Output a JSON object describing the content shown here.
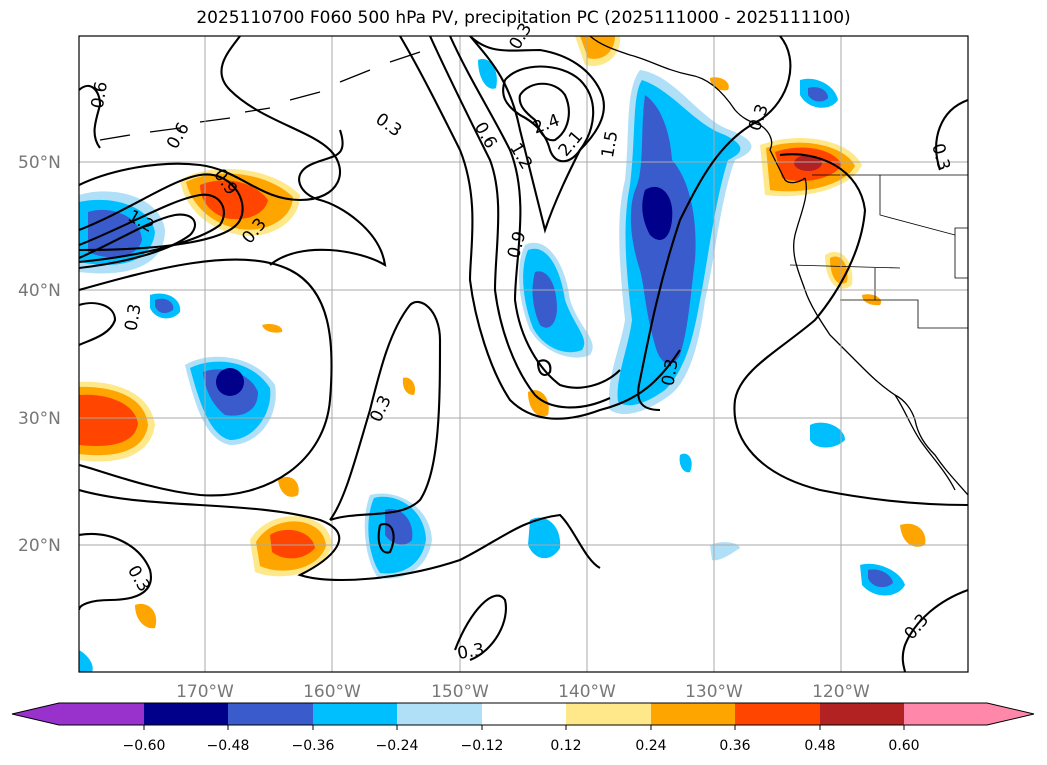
{
  "title": "2025110700 F060 500 hPa PV, precipitation PC (2025111000 - 2025111100)",
  "map": {
    "lat_ticks": [
      "50°N",
      "40°N",
      "30°N",
      "20°N"
    ],
    "lon_ticks": [
      "170°W",
      "160°W",
      "150°W",
      "140°W",
      "130°W",
      "120°W"
    ],
    "lon_range": [
      -180,
      -110
    ],
    "lat_range": [
      10,
      60
    ],
    "contour_labels": [
      "0.6",
      "0.6",
      "0.9",
      "1.2",
      "0.3",
      "0.3",
      "0.3",
      "0.6",
      "1.2",
      "0.9",
      "2.4",
      "2.1",
      "1.5",
      "0.3",
      "0.3",
      "0.3",
      "0.3",
      "0.3",
      "0.3",
      "0.3",
      "0.3"
    ]
  },
  "colorbar": {
    "ticks": [
      "−0.60",
      "−0.48",
      "−0.36",
      "−0.24",
      "−0.12",
      "0.12",
      "0.24",
      "0.36",
      "0.48",
      "0.60"
    ],
    "colors": [
      "#9932cc",
      "#00008b",
      "#3a5bcc",
      "#00bfff",
      "#b0e0f8",
      "#ffffff",
      "#ffe88a",
      "#ffa500",
      "#ff4500",
      "#b22222",
      "#ff88aa"
    ]
  }
}
